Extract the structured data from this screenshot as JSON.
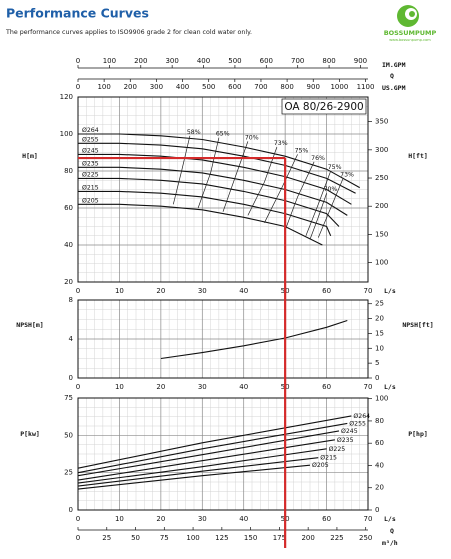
{
  "header": {
    "title": "Performance Curves",
    "subtitle": "The performance curves applies to ISO9906 grade 2 for clean cold water only.",
    "logo": {
      "name": "BOSSUMPUMP",
      "url": "www.bossunpump.com"
    }
  },
  "chart_data": [
    {
      "type": "line",
      "model": "OA 80/26-2900",
      "xlabel": "L/s",
      "ylabel": "H[m]",
      "y2label": "H[ft]",
      "q_label": "Q",
      "xlim": [
        0,
        70
      ],
      "xticks": [
        0,
        10,
        20,
        30,
        40,
        50,
        60,
        70
      ],
      "ylim": [
        20,
        120
      ],
      "yticks": [
        20,
        40,
        60,
        80,
        100,
        120
      ],
      "y2lim": [
        65.6,
        393.7
      ],
      "y2ticks": [
        100,
        150,
        200,
        250,
        300,
        350
      ],
      "grid": true,
      "color": "#111111",
      "label_position": "start",
      "x2_axes": [
        {
          "label": "IM.GPM",
          "xlim": [
            0,
            924
          ],
          "xticks": [
            0,
            100,
            200,
            300,
            400,
            500,
            600,
            700,
            800,
            900
          ]
        },
        {
          "label": "US.GPM",
          "xlim": [
            0,
            1109.5
          ],
          "xticks": [
            0,
            100,
            200,
            300,
            400,
            500,
            600,
            700,
            800,
            900,
            1000,
            1100
          ]
        }
      ],
      "series": [
        {
          "name": "Ø264",
          "x": [
            0,
            10,
            20,
            30,
            40,
            50,
            60,
            68
          ],
          "values": [
            100,
            100,
            99,
            97,
            93,
            88,
            81,
            71
          ]
        },
        {
          "name": "Ø255",
          "x": [
            0,
            10,
            20,
            30,
            40,
            50,
            60,
            67
          ],
          "values": [
            95,
            95,
            94,
            92,
            88,
            83,
            76,
            68
          ]
        },
        {
          "name": "Ø245",
          "x": [
            0,
            10,
            20,
            30,
            40,
            50,
            60,
            66
          ],
          "values": [
            89,
            89,
            88,
            86,
            82,
            77,
            70,
            62
          ]
        },
        {
          "name": "Ø235",
          "x": [
            0,
            10,
            20,
            30,
            40,
            50,
            60,
            65
          ],
          "values": [
            82,
            82,
            81,
            79,
            75,
            70,
            63,
            56
          ]
        },
        {
          "name": "Ø225",
          "x": [
            0,
            10,
            20,
            30,
            40,
            50,
            60,
            63
          ],
          "values": [
            76,
            76,
            75,
            73,
            69,
            64,
            57,
            50
          ]
        },
        {
          "name": "Ø215",
          "x": [
            0,
            10,
            20,
            30,
            40,
            50,
            60,
            61
          ],
          "values": [
            69,
            69,
            68,
            66,
            62,
            57,
            50,
            45
          ]
        },
        {
          "name": "Ø205",
          "x": [
            0,
            10,
            20,
            30,
            40,
            50,
            59
          ],
          "values": [
            62,
            62,
            61,
            59,
            55,
            50,
            40
          ]
        }
      ],
      "efficiency_curves": [
        {
          "name": "58%",
          "x": [
            27,
            25,
            23
          ],
          "values": [
            99,
            80,
            62
          ]
        },
        {
          "name": "65%",
          "x": [
            34,
            32,
            29
          ],
          "values": [
            98,
            79,
            60
          ]
        },
        {
          "name": "70%",
          "x": [
            41,
            38,
            35
          ],
          "values": [
            96,
            77,
            58
          ]
        },
        {
          "name": "73%",
          "x": [
            48,
            45,
            41
          ],
          "values": [
            93,
            74,
            56
          ]
        },
        {
          "name": "75%",
          "x": [
            53,
            49,
            45
          ],
          "values": [
            89,
            70,
            52
          ]
        },
        {
          "name": "76%",
          "x": [
            57,
            53,
            50
          ],
          "values": [
            85,
            66,
            48
          ]
        },
        {
          "name": "75%",
          "x": [
            61,
            58,
            55
          ],
          "values": [
            80,
            62,
            45
          ]
        },
        {
          "name": "73%",
          "x": [
            64,
            61,
            58
          ],
          "values": [
            76,
            60,
            44
          ]
        },
        {
          "name": "70%",
          "x": [
            60,
            58,
            56
          ],
          "values": [
            68,
            55,
            43
          ]
        }
      ],
      "duty_point": {
        "x": 50,
        "y": 87,
        "color": "#d42a2a"
      }
    },
    {
      "type": "line",
      "xlabel": "L/s",
      "ylabel": "NPSH[m]",
      "y2label": "NPSH[ft]",
      "xlim": [
        0,
        70
      ],
      "xticks": [
        0,
        10,
        20,
        30,
        40,
        50,
        60,
        70
      ],
      "ylim": [
        0,
        8
      ],
      "yticks": [
        0,
        4,
        8
      ],
      "y2lim": [
        0,
        26.25
      ],
      "y2ticks": [
        0,
        5,
        10,
        15,
        20,
        25
      ],
      "grid": true,
      "color": "#111111",
      "series": [
        {
          "x": [
            20,
            30,
            40,
            50,
            60,
            65
          ],
          "values": [
            2.0,
            2.6,
            3.3,
            4.1,
            5.2,
            5.9
          ]
        }
      ]
    },
    {
      "type": "line",
      "xlabel": "L/s",
      "ylabel": "P[kw]",
      "y2label": "P[hp]",
      "q_label": "Q",
      "xlim": [
        0,
        70
      ],
      "xticks": [
        0,
        10,
        20,
        30,
        40,
        50,
        60,
        70
      ],
      "ylim": [
        0,
        75
      ],
      "yticks": [
        0,
        25,
        50,
        75
      ],
      "y2lim": [
        0,
        100.6
      ],
      "y2ticks": [
        0,
        20,
        40,
        60,
        80,
        100
      ],
      "grid": true,
      "color": "#111111",
      "label_position": "end",
      "x2_axes": [
        {
          "label": "m³/h",
          "xlim": [
            0,
            252
          ],
          "xticks": [
            0,
            25,
            50,
            75,
            100,
            125,
            150,
            175,
            200,
            225,
            250
          ]
        }
      ],
      "series": [
        {
          "name": "Ø264",
          "x": [
            0,
            30,
            66
          ],
          "values": [
            28,
            45,
            63
          ]
        },
        {
          "name": "Ø255",
          "x": [
            0,
            30,
            65
          ],
          "values": [
            25,
            41,
            58
          ]
        },
        {
          "name": "Ø245",
          "x": [
            0,
            30,
            63
          ],
          "values": [
            23,
            37,
            53
          ]
        },
        {
          "name": "Ø235",
          "x": [
            0,
            30,
            62
          ],
          "values": [
            20,
            33,
            47
          ]
        },
        {
          "name": "Ø225",
          "x": [
            0,
            30,
            60
          ],
          "values": [
            18,
            29,
            41
          ]
        },
        {
          "name": "Ø215",
          "x": [
            0,
            30,
            58
          ],
          "values": [
            16,
            26,
            35
          ]
        },
        {
          "name": "Ø205",
          "x": [
            0,
            30,
            56
          ],
          "values": [
            14,
            23,
            30
          ]
        }
      ]
    }
  ]
}
